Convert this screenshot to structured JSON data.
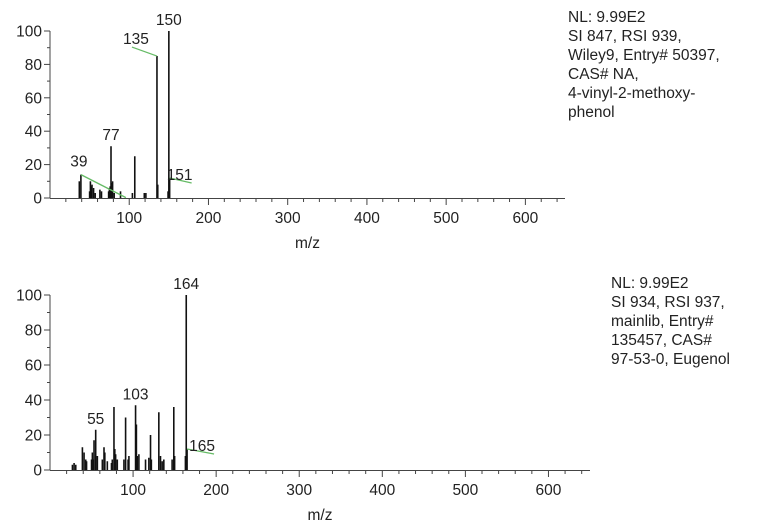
{
  "chart_data": [
    {
      "type": "bar",
      "xlabel": "m/z",
      "ylabel": "",
      "xlim": [
        0,
        650
      ],
      "ylim": [
        0,
        100
      ],
      "x_ticks": [
        100,
        200,
        300,
        400,
        500,
        600
      ],
      "y_ticks": [
        0,
        20,
        40,
        60,
        80,
        100
      ],
      "info": [
        "NL: 9.99E2",
        "SI 847, RSI 939,",
        "Wiley9, Entry# 50397,",
        "CAS# NA,",
        "4-vinyl-2-methoxy-",
        "phenol"
      ],
      "peaks": [
        {
          "x": 37,
          "y": 10
        },
        {
          "x": 39,
          "y": 14
        },
        {
          "x": 50,
          "y": 4
        },
        {
          "x": 51,
          "y": 10
        },
        {
          "x": 52,
          "y": 7
        },
        {
          "x": 53,
          "y": 8
        },
        {
          "x": 55,
          "y": 6
        },
        {
          "x": 57,
          "y": 3
        },
        {
          "x": 63,
          "y": 5
        },
        {
          "x": 65,
          "y": 4
        },
        {
          "x": 74,
          "y": 4
        },
        {
          "x": 75,
          "y": 6
        },
        {
          "x": 76,
          "y": 7
        },
        {
          "x": 77,
          "y": 31
        },
        {
          "x": 78,
          "y": 9
        },
        {
          "x": 79,
          "y": 10
        },
        {
          "x": 81,
          "y": 3
        },
        {
          "x": 89,
          "y": 4
        },
        {
          "x": 104,
          "y": 3
        },
        {
          "x": 107,
          "y": 25
        },
        {
          "x": 119,
          "y": 3
        },
        {
          "x": 121,
          "y": 3
        },
        {
          "x": 135,
          "y": 85
        },
        {
          "x": 136,
          "y": 8
        },
        {
          "x": 149,
          "y": 4
        },
        {
          "x": 150,
          "y": 100
        },
        {
          "x": 151,
          "y": 12
        }
      ],
      "labels": [
        {
          "x": 39,
          "y": 14,
          "text": "39",
          "dx": 45,
          "dy": 23
        },
        {
          "x": 77,
          "y": 31,
          "text": "77"
        },
        {
          "x": 135,
          "y": 85,
          "text": "135",
          "dx": -25,
          "dy": -9
        },
        {
          "x": 150,
          "y": 100,
          "text": "150"
        },
        {
          "x": 151,
          "y": 12,
          "text": "151",
          "dx": 22,
          "dy": 5
        }
      ]
    },
    {
      "type": "bar",
      "xlabel": "m/z",
      "ylabel": "",
      "xlim": [
        0,
        650
      ],
      "ylim": [
        0,
        100
      ],
      "x_ticks": [
        100,
        200,
        300,
        400,
        500,
        600
      ],
      "y_ticks": [
        0,
        20,
        40,
        60,
        80,
        100
      ],
      "info": [
        "NL: 9.99E2",
        "SI 934, RSI 937,",
        "mainlib, Entry#",
        "135457, CAS#",
        "97-53-0, Eugenol"
      ],
      "peaks": [
        {
          "x": 27,
          "y": 3
        },
        {
          "x": 29,
          "y": 4
        },
        {
          "x": 31,
          "y": 3
        },
        {
          "x": 39,
          "y": 13
        },
        {
          "x": 41,
          "y": 10
        },
        {
          "x": 43,
          "y": 6
        },
        {
          "x": 44,
          "y": 5
        },
        {
          "x": 50,
          "y": 6
        },
        {
          "x": 51,
          "y": 10
        },
        {
          "x": 52,
          "y": 6
        },
        {
          "x": 53,
          "y": 17
        },
        {
          "x": 55,
          "y": 23
        },
        {
          "x": 57,
          "y": 8
        },
        {
          "x": 63,
          "y": 6
        },
        {
          "x": 65,
          "y": 13
        },
        {
          "x": 66,
          "y": 10
        },
        {
          "x": 69,
          "y": 5
        },
        {
          "x": 74,
          "y": 4
        },
        {
          "x": 75,
          "y": 6
        },
        {
          "x": 77,
          "y": 36
        },
        {
          "x": 78,
          "y": 12
        },
        {
          "x": 79,
          "y": 9
        },
        {
          "x": 81,
          "y": 6
        },
        {
          "x": 89,
          "y": 6
        },
        {
          "x": 91,
          "y": 30
        },
        {
          "x": 94,
          "y": 6
        },
        {
          "x": 95,
          "y": 8
        },
        {
          "x": 103,
          "y": 37
        },
        {
          "x": 104,
          "y": 26
        },
        {
          "x": 105,
          "y": 8
        },
        {
          "x": 107,
          "y": 9
        },
        {
          "x": 115,
          "y": 6
        },
        {
          "x": 119,
          "y": 7
        },
        {
          "x": 121,
          "y": 20
        },
        {
          "x": 122,
          "y": 6
        },
        {
          "x": 131,
          "y": 33
        },
        {
          "x": 133,
          "y": 8
        },
        {
          "x": 135,
          "y": 5
        },
        {
          "x": 137,
          "y": 6
        },
        {
          "x": 147,
          "y": 6
        },
        {
          "x": 149,
          "y": 36
        },
        {
          "x": 150,
          "y": 8
        },
        {
          "x": 163,
          "y": 8
        },
        {
          "x": 164,
          "y": 100
        },
        {
          "x": 165,
          "y": 12
        }
      ],
      "labels": [
        {
          "x": 55,
          "y": 23,
          "text": "55"
        },
        {
          "x": 103,
          "y": 37,
          "text": "103"
        },
        {
          "x": 164,
          "y": 100,
          "text": "164"
        },
        {
          "x": 165,
          "y": 12,
          "text": "165",
          "dx": 27,
          "dy": 5
        }
      ]
    }
  ]
}
